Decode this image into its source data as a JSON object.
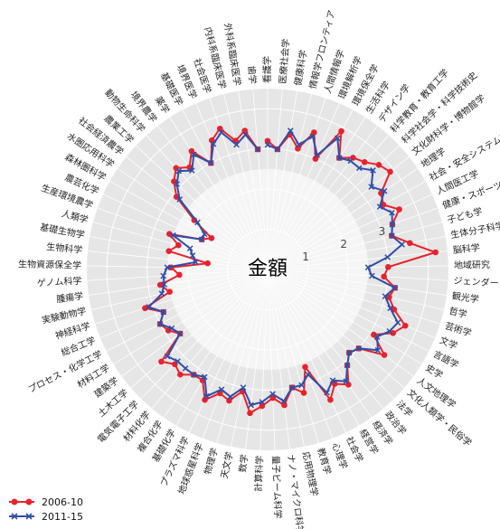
{
  "chart_data": {
    "type": "radar",
    "title": "金額",
    "rlim": [
      0,
      4.5
    ],
    "ring_labels": [
      "1",
      "2",
      "3"
    ],
    "categories": [
      "看護学",
      "医療社会学",
      "健康科学",
      "情報学フロンティア",
      "人間情報学",
      "環境解析学",
      "環境保全学",
      "生活科学",
      "デザイン学",
      "科学教育・教育工学",
      "科学社会学・科学技術史",
      "文化財科学・博物館学",
      "地理学",
      "社会・安全システム科学",
      "人間医工学",
      "健康・スポーツ科学",
      "子ども学",
      "生体分子科学",
      "脳科学",
      "地域研究",
      "ジェンダー",
      "観光学",
      "哲学",
      "芸術学",
      "文学",
      "言語学",
      "史学",
      "人文地理学",
      "文化人類学・民俗学",
      "法学",
      "政治学",
      "経済学",
      "経営学",
      "社会学",
      "心理学",
      "教育学",
      "応用物理学",
      "ナノ・マイクロ科学",
      "量子ビーム科学",
      "計算科学",
      "数学",
      "天文学",
      "物理学",
      "地球惑星科学",
      "プラズマ科学",
      "基礎化学",
      "複合化学",
      "材料化学",
      "電気電子工学",
      "土木工学",
      "建築学",
      "材料工学",
      "プロセス・化学工学",
      "総合工学",
      "神経科学",
      "実験動物学",
      "腫瘍学",
      "ゲノム科学",
      "生物資源保全学",
      "生物科学",
      "基礎生物学",
      "人類学",
      "生産環境農学",
      "農芸化学",
      "森林圏科学",
      "水圏応用科学",
      "社会経済農学",
      "農業工学",
      "動物生命科学",
      "境界農学",
      "薬学",
      "基礎医学",
      "境界医学",
      "社会医学",
      "内科系臨床医学",
      "外科系臨床医学",
      "歯学"
    ],
    "series": [
      {
        "name": "2006-10",
        "color": "#e8222c",
        "marker": "circle",
        "values": [
          3.2,
          3.0,
          3.4,
          3.1,
          3.6,
          3.0,
          3.9,
          3.3,
          3.5,
          3.6,
          3.8,
          3.9,
          3.4,
          3.3,
          3.6,
          3.3,
          3.2,
          3.6,
          4.2,
          3.0,
          2.9,
          3.2,
          3.1,
          3.3,
          3.7,
          3.5,
          3.1,
          3.6,
          3.0,
          2.9,
          3.1,
          3.5,
          3.3,
          3.6,
          2.6,
          3.2,
          3.0,
          3.4,
          3.2,
          3.4,
          3.6,
          3.1,
          3.4,
          3.3,
          3.6,
          3.2,
          3.2,
          3.4,
          3.3,
          3.5,
          2.7,
          2.9,
          3.0,
          2.8,
          3.2,
          2.5,
          2.7,
          2.2,
          2.4,
          1.5,
          2.5,
          2.3,
          2.6,
          1.8,
          1.6,
          2.2,
          2.9,
          3.2,
          3.4,
          3.2,
          3.5,
          3.0,
          3.5,
          3.7,
          3.3,
          3.5,
          3.0
        ]
      },
      {
        "name": "2011-15",
        "color": "#2f4fa8",
        "marker": "x",
        "values": [
          3.1,
          3.0,
          3.5,
          3.2,
          3.5,
          3.1,
          3.7,
          3.3,
          3.4,
          3.4,
          3.6,
          3.3,
          3.5,
          3.2,
          3.4,
          3.3,
          3.2,
          3.4,
          3.0,
          2.5,
          2.6,
          3.2,
          3.0,
          3.2,
          3.5,
          3.4,
          3.2,
          3.4,
          3.0,
          2.9,
          3.1,
          3.4,
          3.2,
          3.4,
          2.8,
          3.0,
          3.0,
          3.3,
          3.1,
          3.3,
          3.4,
          3.0,
          3.3,
          3.2,
          3.5,
          3.1,
          3.2,
          3.2,
          3.2,
          3.3,
          2.7,
          2.8,
          3.0,
          2.8,
          3.1,
          2.7,
          2.6,
          2.6,
          2.5,
          1.8,
          1.9,
          2.0,
          2.5,
          1.8,
          1.8,
          2.1,
          2.8,
          3.1,
          3.3,
          3.1,
          3.4,
          3.0,
          3.4,
          3.6,
          3.2,
          3.4,
          3.0
        ]
      }
    ],
    "legend_position": "bottom-left"
  }
}
